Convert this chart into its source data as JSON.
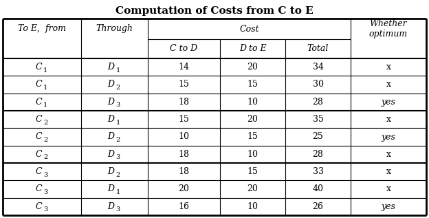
{
  "title": "Computation of Costs from C to E",
  "rows": [
    [
      "C",
      "1",
      "D",
      "1",
      "14",
      "20",
      "34",
      "x"
    ],
    [
      "C",
      "1",
      "D",
      "2",
      "15",
      "15",
      "30",
      "x"
    ],
    [
      "C",
      "1",
      "D",
      "3",
      "18",
      "10",
      "28",
      "yes"
    ],
    [
      "C",
      "2",
      "D",
      "1",
      "15",
      "20",
      "35",
      "x"
    ],
    [
      "C",
      "2",
      "D",
      "2",
      "10",
      "15",
      "25",
      "yes"
    ],
    [
      "C",
      "2",
      "D",
      "3",
      "18",
      "10",
      "28",
      "x"
    ],
    [
      "C",
      "3",
      "D",
      "2",
      "18",
      "15",
      "33",
      "x"
    ],
    [
      "C",
      "3",
      "D",
      "1",
      "20",
      "20",
      "40",
      "x"
    ],
    [
      "C",
      "3",
      "D",
      "3",
      "16",
      "10",
      "26",
      "yes"
    ]
  ],
  "group_separators": [
    3,
    6
  ],
  "background_color": "#ffffff",
  "text_color": "#000000"
}
